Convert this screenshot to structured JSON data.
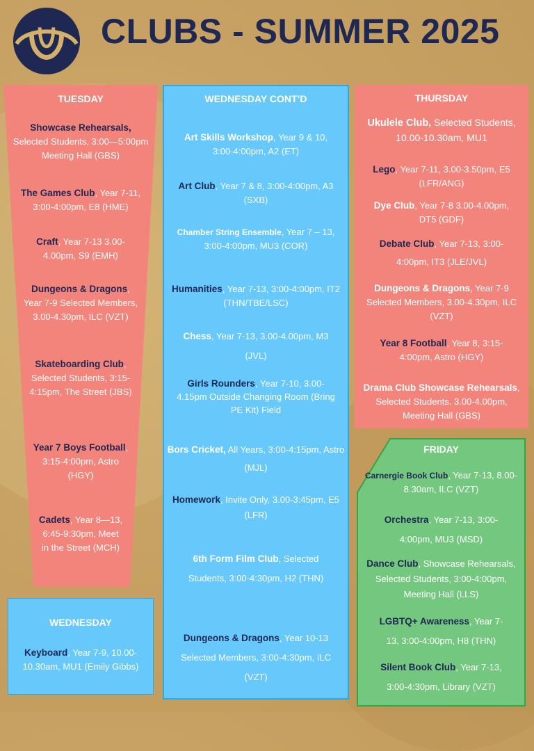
{
  "header": {
    "title": "CLUBS - SUMMER 2025"
  },
  "colors": {
    "navy": "#1f2753",
    "tuesday": "#f2847c",
    "wednesday": "#66c8fb",
    "thursday": "#f2847c",
    "friday": "#74c77f"
  },
  "tuesday": {
    "heading": "TUESDAY",
    "items": [
      {
        "name": "Showcase Rehearsals,",
        "details": "Selected Students, 3:00—5:00pm Meeting Hall  (GBS)"
      },
      {
        "name": "The Games Club",
        "details": ", Year 7-11, 3:00-4:00pm, E8 (HME)"
      },
      {
        "name": "Craft",
        "details": ", Year 7-13 3.00-4.00pm, S9 (EMH)"
      },
      {
        "name": "Dungeons & Dragons",
        "details": ", Year 7-9 Selected Members, 3.00-4.30pm, ILC (VZT)"
      },
      {
        "name": "Skateboarding Club",
        "details": ", Selected Students, 3:15-4:15pm,  The Street (JBS)"
      },
      {
        "name": "Year 7 Boys Football",
        "details": ", 3:15-4:00pm, Astro (HGY)"
      },
      {
        "name": "Cadets",
        "details": ", Year 8—13, 6:45-9:30pm, Meet in the Street (MCH)"
      }
    ]
  },
  "wednesday": {
    "heading": "WEDNESDAY",
    "items": [
      {
        "name": "Keyboard",
        "details": ", Year 7-9, 10.00-10.30am, MU1 (Emily Gibbs)"
      }
    ]
  },
  "wednesday_contd": {
    "heading": "WEDNESDAY CONT’D",
    "items": [
      {
        "name": "Art Skills Workshop",
        "details": ", Year 9 & 10, 3:00-4:00pm, A2 (ET)"
      },
      {
        "name": "Art Club",
        "details": ", Year 7 & 8, 3:00-4:00pm, A3 (SXB)"
      },
      {
        "name": "Chamber String Ensemble",
        "details": ", Year 7 – 13, 3:00-4:00pm, MU3 (COR)"
      },
      {
        "name": "Humanities",
        "details": ", Year 7-13, 3:00-4:00pm, IT2 (THN/TBE/LSC)"
      },
      {
        "name": "Chess",
        "details": ", Year 7-13, 3.00-4.00pm, M3 (JVL)"
      },
      {
        "name": "Girls Rounders",
        "details": ", Year 7-10,  3.00-4.15pm Outside Changing Room (Bring PE Kit) Field"
      },
      {
        "name": "Bors Cricket,",
        "details": " All Years, 3:00-4:15pm, Astro (MJL)"
      },
      {
        "name": "Homework",
        "details": ", Invite Only, 3.00-3:45pm, E5 (LFR)"
      },
      {
        "name": "6th Form Film Club",
        "details": ", Selected Students, 3:00-4:30pm, H2 (THN)"
      },
      {
        "name": "Dungeons & Dragons",
        "details": ", Year 10-13 Selected Members, 3:00-4:30pm, ILC (VZT)"
      }
    ]
  },
  "thursday": {
    "heading": "THURSDAY",
    "items": [
      {
        "name": "Ukulele Club,",
        "details": " Selected Students, 10.00-10.30am, MU1"
      },
      {
        "name": "Lego",
        "details": ", Year 7-11, 3.00-3.50pm, E5 (LFR/ANG)"
      },
      {
        "name": "Dye Club",
        "details": ", Year 7-8 3.00-4.00pm, DT5 (GDF)"
      },
      {
        "name": "Debate Club",
        "details": ", Year 7-13, 3:00-4:00pm, IT3 (JLE/JVL)"
      },
      {
        "name": "Dungeons & Dragons",
        "details": ", Year 7-9 Selected Members, 3.00-4.30pm, ILC (VZT)"
      },
      {
        "name": "Year 8 Football",
        "details": ", Year 8, 3:15-4:00pm, Astro (HGY)"
      },
      {
        "name": "Drama Club Showcase Rehearsals",
        "details": ", Selected Students. 3.00-4.00pm, Meeting Hall (GBS)"
      }
    ]
  },
  "friday": {
    "heading": "FRIDAY",
    "items": [
      {
        "name": "Carnergie Book Club",
        "details": ", Year 7-13, 8.00-8.30am, ILC (VZT)"
      },
      {
        "name": "Orchestra",
        "details": ", Year 7-13, 3:00-4:00pm, MU3 (MSD)"
      },
      {
        "name": "Dance Club",
        "details": ", Showcase Rehearsals, Selected Students, 3:00-4:00pm, Meeting Hall  (LLS)"
      },
      {
        "name": "LGBTQ+ Awareness",
        "details": ", Year 7-13, 3:00-4:00pm, H8 (THN)"
      },
      {
        "name": "Silent Book Club",
        "details": ", Year 7-13, 3:00-4:30pm, Library  (VZT)"
      }
    ]
  }
}
